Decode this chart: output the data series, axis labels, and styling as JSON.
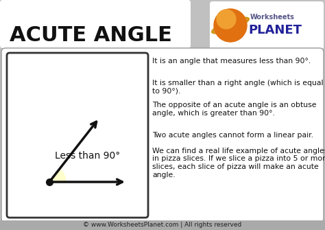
{
  "title": "ACUTE ANGLE",
  "bg_color": "#c0c0c0",
  "title_color": "#111111",
  "text_color": "#111111",
  "angle_label": "Less than 90°",
  "angle_fill_color": "#ffffcc",
  "line_color": "#111111",
  "footer_text": "© www.WorksheetsPlanet.com | All rights reserved",
  "bullet_texts": [
    "It is an angle that measures less than 90°.",
    "It is smaller than a right angle (which is equal\nto 90°).",
    "The opposite of an acute angle is an obtuse\nangle, which is greater than 90°.",
    "Two acute angles cannot form a linear pair.",
    "We can find a real life example of acute angles\nin pizza slices. If we slice a pizza into 5 or more\nslices, each slice of pizza will make an acute\nangle."
  ],
  "logo_planet_color": "#e07010",
  "logo_ring_color": "#cc8800",
  "logo_text1_color": "#444488",
  "logo_text2_color": "#222299",
  "logo_bg": "#f0f0f0"
}
